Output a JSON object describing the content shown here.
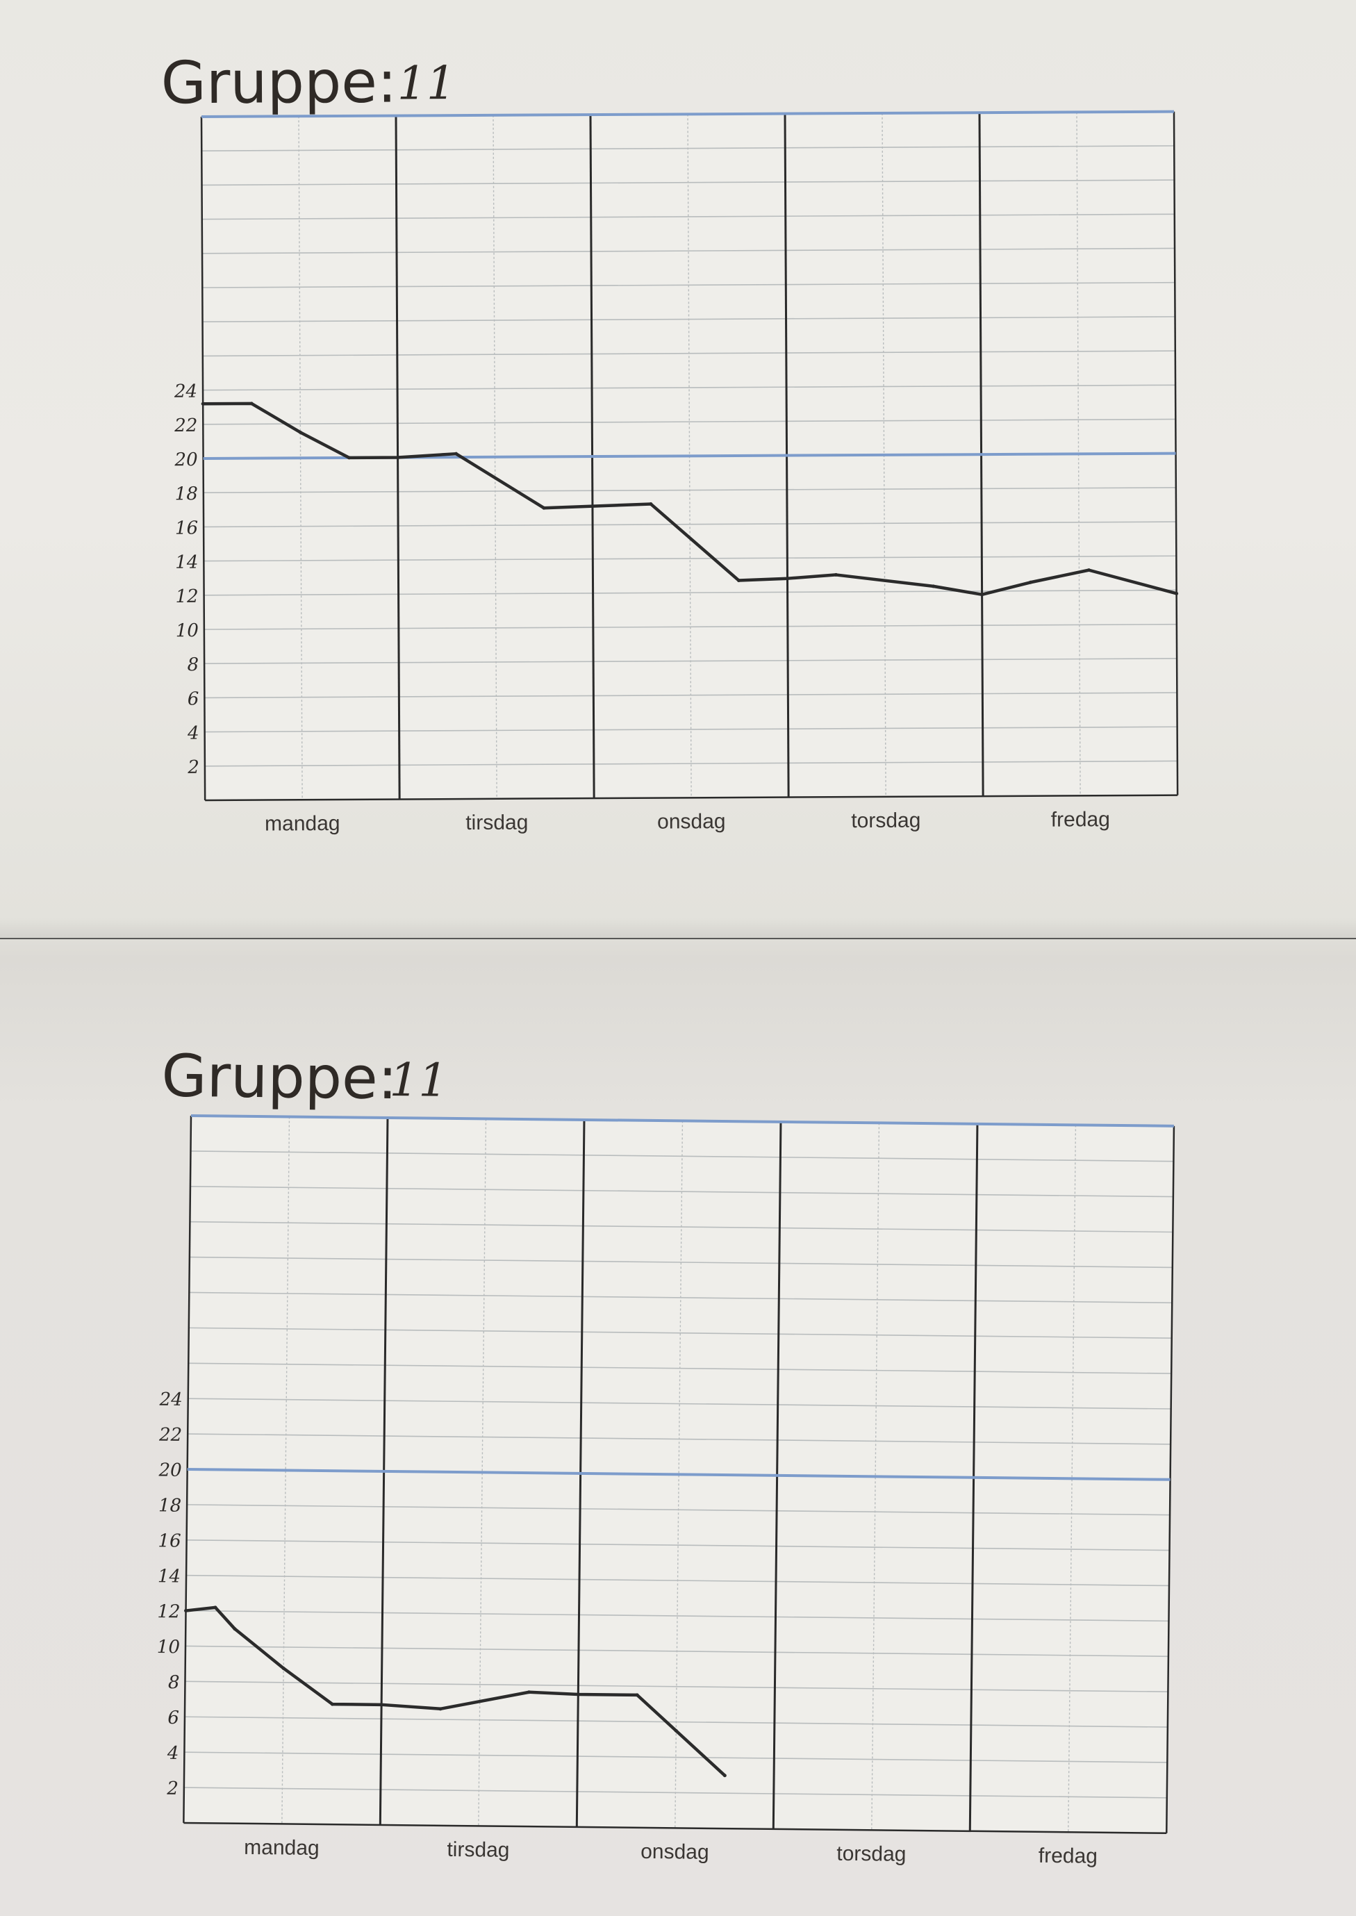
{
  "colors": {
    "accent_line": "#7d9ccb",
    "data_line": "#2b2b2b",
    "grid": "#b8bcbd",
    "frame": "#2a2a2a"
  },
  "chart_data": [
    {
      "type": "line",
      "title": "Gruppe:",
      "group_number": "11",
      "categories": [
        "mandag",
        "tirsdag",
        "onsdag",
        "torsdag",
        "fredag"
      ],
      "yticks": [
        "2",
        "4",
        "6",
        "8",
        "10",
        "12",
        "14",
        "16",
        "18",
        "20",
        "22",
        "24"
      ],
      "ylim": [
        0,
        40
      ],
      "xlim": [
        0,
        5
      ],
      "reference_lines": [
        20,
        40
      ],
      "grid": true,
      "series": [
        {
          "x": [
            0,
            0.25,
            0.5,
            0.75,
            1.0,
            1.3,
            1.75,
            2.3,
            2.75,
            3.0,
            3.25,
            3.75,
            4.0,
            4.25,
            4.55,
            5.0
          ],
          "values": [
            23.2,
            23.2,
            21.5,
            20.0,
            20.0,
            20.2,
            17.0,
            17.2,
            12.7,
            12.8,
            13.0,
            12.3,
            11.8,
            12.5,
            13.2,
            11.8
          ]
        }
      ]
    },
    {
      "type": "line",
      "title": "Gruppe:",
      "group_number": "11",
      "categories": [
        "mandag",
        "tirsdag",
        "onsdag",
        "torsdag",
        "fredag"
      ],
      "yticks": [
        "2",
        "4",
        "6",
        "8",
        "10",
        "12",
        "14",
        "16",
        "18",
        "20",
        "22",
        "24"
      ],
      "ylim": [
        0,
        40
      ],
      "xlim": [
        0,
        5
      ],
      "reference_lines": [
        20,
        40
      ],
      "grid": true,
      "series": [
        {
          "x": [
            0,
            0.15,
            0.25,
            0.5,
            0.75,
            1.0,
            1.3,
            1.75,
            2.0,
            2.3,
            2.5,
            2.75
          ],
          "values": [
            12.0,
            12.2,
            11.0,
            8.8,
            6.8,
            6.8,
            6.6,
            7.6,
            7.5,
            7.5,
            5.5,
            3.0
          ]
        }
      ]
    }
  ]
}
